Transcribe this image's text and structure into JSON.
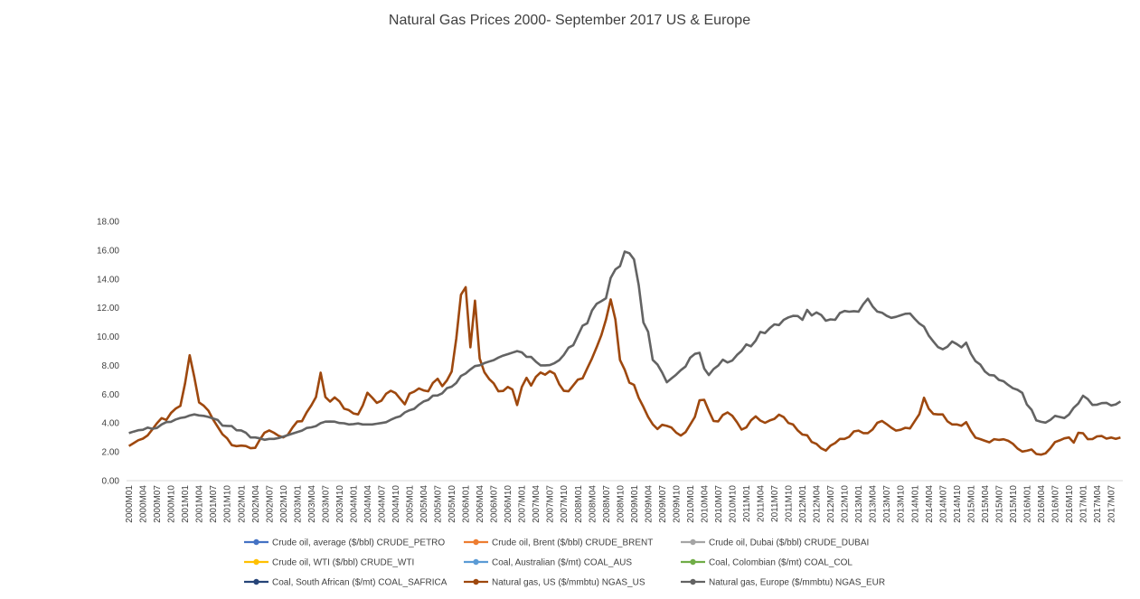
{
  "chart_data": {
    "type": "line",
    "title": "Natural Gas Prices  2000- September 2017  US & Europe",
    "xlabel": "",
    "ylabel": "",
    "ylim": [
      0,
      18
    ],
    "y_ticks": [
      "0.00",
      "2.00",
      "4.00",
      "6.00",
      "8.00",
      "10.00",
      "12.00",
      "14.00",
      "16.00",
      "18.00"
    ],
    "x_tick_labels": [
      "2000M01",
      "2000M04",
      "2000M07",
      "2000M10",
      "2001M01",
      "2001M04",
      "2001M07",
      "2001M10",
      "2002M01",
      "2002M04",
      "2002M07",
      "2002M10",
      "2003M01",
      "2003M04",
      "2003M07",
      "2003M10",
      "2004M01",
      "2004M04",
      "2004M07",
      "2004M10",
      "2005M01",
      "2005M04",
      "2005M07",
      "2005M10",
      "2006M01",
      "2006M04",
      "2006M07",
      "2006M10",
      "2007M01",
      "2007M04",
      "2007M07",
      "2007M10",
      "2008M01",
      "2008M04",
      "2008M07",
      "2008M10",
      "2009M01",
      "2009M04",
      "2009M07",
      "2009M10",
      "2010M01",
      "2010M04",
      "2010M07",
      "2010M10",
      "2011M01",
      "2011M04",
      "2011M07",
      "2011M10",
      "2012M01",
      "2012M04",
      "2012M07",
      "2012M10",
      "2013M01",
      "2013M04",
      "2013M07",
      "2013M10",
      "2014M01",
      "2014M04",
      "2014M07",
      "2014M10",
      "2015M01",
      "2015M04",
      "2015M07",
      "2015M10",
      "2016M01",
      "2016M04",
      "2016M07",
      "2016M10",
      "2017M01",
      "2017M04",
      "2017M07"
    ],
    "legend": [
      {
        "label": "Crude oil, average ($/bbl) CRUDE_PETRO",
        "color": "#4472c4"
      },
      {
        "label": "Crude oil, Brent ($/bbl) CRUDE_BRENT",
        "color": "#ed7d31"
      },
      {
        "label": "Crude oil, Dubai ($/bbl) CRUDE_DUBAI",
        "color": "#a5a5a5"
      },
      {
        "label": "Crude oil, WTI ($/bbl) CRUDE_WTI",
        "color": "#ffc000"
      },
      {
        "label": "Coal, Australian ($/mt) COAL_AUS",
        "color": "#5b9bd5"
      },
      {
        "label": "Coal, Colombian ($/mt) COAL_COL",
        "color": "#70ad47"
      },
      {
        "label": "Coal, South African ($/mt) COAL_SAFRICA",
        "color": "#264478"
      },
      {
        "label": "Natural gas, US ($/mmbtu) NGAS_US",
        "color": "#9e480e"
      },
      {
        "label": "Natural gas, Europe ($/mmbtu) NGAS_EUR",
        "color": "#636363"
      }
    ],
    "legend_position": "bottom",
    "grid": false,
    "series": [
      {
        "name": "Natural gas, US ($/mmbtu) NGAS_US",
        "color": "#9e480e",
        "values": [
          2.4,
          2.6,
          2.8,
          2.9,
          3.1,
          3.5,
          3.9,
          4.4,
          4.1,
          4.6,
          5.0,
          5.0,
          5.6,
          9.0,
          8.2,
          5.6,
          5.2,
          5.2,
          4.5,
          4.0,
          3.5,
          3.0,
          2.9,
          2.2,
          2.5,
          2.4,
          2.4,
          2.2,
          2.3,
          3.0,
          3.4,
          3.5,
          3.3,
          3.1,
          3.0,
          3.2,
          3.7,
          4.1,
          4.1,
          4.7,
          5.2,
          5.5,
          7.8,
          5.9,
          5.4,
          5.8,
          5.7,
          5.0,
          5.0,
          4.7,
          4.6,
          4.6,
          6.1,
          6.1,
          5.4,
          5.4,
          5.7,
          6.3,
          6.2,
          6.0,
          5.5,
          5.2,
          6.4,
          6.1,
          6.5,
          6.2,
          6.2,
          6.9,
          7.1,
          6.5,
          7.0,
          7.6,
          9.9,
          12.9,
          13.6,
          9.0,
          12.9,
          8.6,
          7.6,
          7.1,
          6.9,
          6.2,
          6.2,
          6.3,
          7.0,
          4.9,
          5.9,
          7.5,
          6.6,
          6.6,
          7.9,
          7.1,
          7.6,
          7.6,
          7.3,
          6.3,
          6.2,
          6.2,
          6.8,
          7.1,
          7.1,
          8.0,
          8.6,
          9.4,
          10.2,
          11.3,
          12.7,
          11.1,
          8.3,
          7.7,
          6.8,
          6.7,
          5.8,
          5.2,
          4.5,
          4.0,
          3.5,
          3.9,
          3.8,
          3.8,
          3.4,
          3.2,
          3.0,
          4.0,
          3.7,
          5.4,
          5.8,
          5.4,
          4.3,
          4.0,
          4.2,
          4.8,
          4.7,
          4.4,
          3.9,
          3.4,
          3.8,
          4.3,
          4.5,
          4.1,
          4.0,
          4.2,
          4.3,
          4.6,
          4.4,
          4.0,
          3.9,
          3.5,
          3.2,
          3.2,
          2.7,
          2.6,
          2.3,
          2.0,
          2.4,
          2.5,
          2.9,
          2.9,
          2.9,
          3.3,
          3.6,
          3.3,
          3.3,
          3.3,
          3.8,
          4.2,
          4.1,
          3.8,
          3.6,
          3.4,
          3.6,
          3.7,
          3.6,
          4.3,
          4.7,
          6.0,
          4.8,
          4.6,
          4.6,
          4.6,
          4.1,
          3.9,
          3.9,
          3.8,
          4.1,
          3.5,
          3.0,
          2.9,
          2.8,
          2.6,
          2.9,
          2.8,
          2.9,
          2.8,
          2.7,
          2.3,
          2.1,
          1.9,
          2.3,
          2.0,
          1.7,
          1.9,
          1.9,
          2.5,
          2.8,
          2.8,
          3.0,
          3.0,
          2.5,
          3.6,
          3.2,
          2.8,
          2.9,
          3.1,
          3.1,
          2.9,
          3.0,
          2.9,
          3.0
        ]
      },
      {
        "name": "Natural gas, Europe ($/mmbtu) NGAS_EUR",
        "color": "#636363",
        "values": [
          3.3,
          3.4,
          3.5,
          3.5,
          3.7,
          3.6,
          3.6,
          3.8,
          4.1,
          4.0,
          4.2,
          4.3,
          4.4,
          4.4,
          4.6,
          4.6,
          4.5,
          4.5,
          4.4,
          4.3,
          4.2,
          3.8,
          3.8,
          3.8,
          3.5,
          3.5,
          3.4,
          3.0,
          3.0,
          3.0,
          2.8,
          2.9,
          2.9,
          2.9,
          3.0,
          3.1,
          3.2,
          3.3,
          3.4,
          3.5,
          3.7,
          3.7,
          3.8,
          4.0,
          4.1,
          4.1,
          4.1,
          4.0,
          4.0,
          3.9,
          3.9,
          4.0,
          3.9,
          3.9,
          3.9,
          3.9,
          4.0,
          4.0,
          4.1,
          4.3,
          4.4,
          4.5,
          4.8,
          4.9,
          5.0,
          5.3,
          5.5,
          5.6,
          5.9,
          5.9,
          6.0,
          6.4,
          6.5,
          6.6,
          7.2,
          7.4,
          7.5,
          8.0,
          7.9,
          8.1,
          8.2,
          8.3,
          8.4,
          8.6,
          8.7,
          8.8,
          8.9,
          9.0,
          8.9,
          8.6,
          8.6,
          8.3,
          8.0,
          8.0,
          8.0,
          8.1,
          8.3,
          8.5,
          9.1,
          9.4,
          9.4,
          10.7,
          10.8,
          11.0,
          12.2,
          12.3,
          12.5,
          12.7,
          14.3,
          14.7,
          14.9,
          15.9,
          15.8,
          15.5,
          14.0,
          11.0,
          10.9,
          8.5,
          8.1,
          8.0,
          6.7,
          7.0,
          7.2,
          7.5,
          7.8,
          8.0,
          8.8,
          8.8,
          8.9,
          7.5,
          7.3,
          7.8,
          8.0,
          8.4,
          8.2,
          8.3,
          8.7,
          8.9,
          9.5,
          9.3,
          9.4,
          10.4,
          10.2,
          10.3,
          10.9,
          10.8,
          10.8,
          11.4,
          11.3,
          11.5,
          11.4,
          11.1,
          12.0,
          11.4,
          11.7,
          11.5,
          11.1,
          11.2,
          11.1,
          11.6,
          11.8,
          11.7,
          11.8,
          11.7,
          11.8,
          12.9,
          12.3,
          11.9,
          11.6,
          11.7,
          11.3,
          11.3,
          11.4,
          11.5,
          11.6,
          11.6,
          11.2,
          10.9,
          10.7,
          10.1,
          9.7,
          9.3,
          9.1,
          9.2,
          9.6,
          9.8,
          8.9,
          9.8,
          9.3,
          8.3,
          8.3,
          7.9,
          7.4,
          7.3,
          7.3,
          6.9,
          6.9,
          6.6,
          6.4,
          6.3,
          6.1,
          5.3,
          5.0,
          4.2,
          4.1,
          4.0,
          4.1,
          4.5,
          4.5,
          4.3,
          4.4,
          4.8,
          5.3,
          5.4,
          6.2,
          5.4,
          5.2,
          5.3,
          5.4,
          5.4,
          5.2,
          5.3,
          5.5
        ]
      }
    ]
  }
}
